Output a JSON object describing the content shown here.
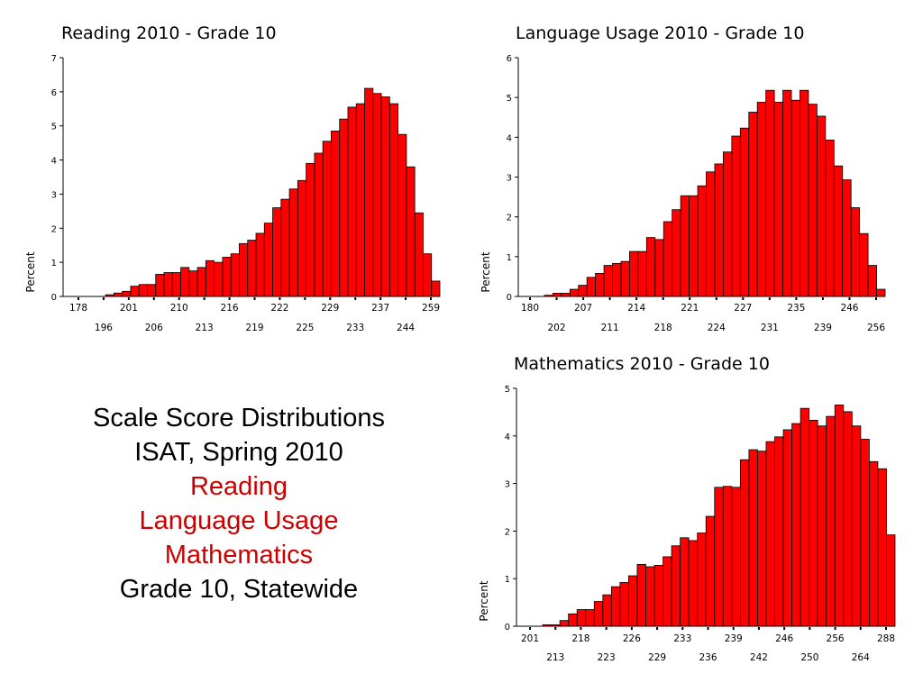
{
  "caption": {
    "line1": "Scale Score Distributions",
    "line2": "ISAT, Spring 2010",
    "line3": "Reading",
    "line4": "Language Usage",
    "line5": "Mathematics",
    "line6": "Grade 10, Statewide"
  },
  "colors": {
    "bar_fill": "#ff0000",
    "bar_stroke": "#000000",
    "highlight_text": "#cc0000"
  },
  "chart_data": [
    {
      "type": "bar",
      "title": "Reading 2010 - Grade 10",
      "ylabel": "Percent",
      "ylim": [
        0,
        7
      ],
      "yticks": [
        0,
        1,
        2,
        3,
        4,
        5,
        6,
        7
      ],
      "xticks_top": [
        "178",
        "201",
        "210",
        "216",
        "222",
        "229",
        "237",
        "259"
      ],
      "xticks_bottom": [
        "196",
        "206",
        "213",
        "219",
        "225",
        "233",
        "244"
      ],
      "values": [
        0,
        0,
        0,
        0,
        0.05,
        0.1,
        0.15,
        0.3,
        0.35,
        0.35,
        0.65,
        0.7,
        0.7,
        0.85,
        0.75,
        0.85,
        1.05,
        1.0,
        1.15,
        1.25,
        1.55,
        1.65,
        1.85,
        2.15,
        2.6,
        2.85,
        3.15,
        3.4,
        3.9,
        4.2,
        4.55,
        4.85,
        5.2,
        5.55,
        5.65,
        6.1,
        5.95,
        5.85,
        5.65,
        4.75,
        3.8,
        2.45,
        1.25,
        0.45
      ]
    },
    {
      "type": "bar",
      "title": "Language Usage 2010 - Grade 10",
      "ylabel": "Percent",
      "ylim": [
        0,
        6
      ],
      "yticks": [
        0,
        1,
        2,
        3,
        4,
        5,
        6
      ],
      "xticks_top": [
        "180",
        "207",
        "214",
        "221",
        "227",
        "235",
        "246"
      ],
      "xticks_bottom": [
        "202",
        "211",
        "218",
        "224",
        "231",
        "239",
        "256"
      ],
      "values": [
        0,
        0,
        0.03,
        0.08,
        0.08,
        0.18,
        0.28,
        0.48,
        0.58,
        0.78,
        0.83,
        0.88,
        1.13,
        1.13,
        1.48,
        1.43,
        1.88,
        2.18,
        2.53,
        2.53,
        2.78,
        3.13,
        3.33,
        3.63,
        4.03,
        4.23,
        4.63,
        4.88,
        5.18,
        4.88,
        5.18,
        4.93,
        5.18,
        4.83,
        4.53,
        3.93,
        3.28,
        2.93,
        2.23,
        1.58,
        0.78,
        0.18
      ]
    },
    {
      "type": "bar",
      "title": "Mathematics 2010 - Grade 10",
      "ylabel": "Percent",
      "ylim": [
        0,
        5
      ],
      "yticks": [
        0,
        1,
        2,
        3,
        4,
        5
      ],
      "xticks_top": [
        "201",
        "218",
        "226",
        "233",
        "239",
        "246",
        "256",
        "288"
      ],
      "xticks_bottom": [
        "213",
        "223",
        "229",
        "236",
        "242",
        "250",
        "264"
      ],
      "values": [
        0,
        0,
        0.03,
        0.03,
        0.12,
        0.26,
        0.35,
        0.35,
        0.52,
        0.66,
        0.83,
        0.92,
        1.06,
        1.3,
        1.25,
        1.28,
        1.46,
        1.69,
        1.86,
        1.8,
        1.96,
        2.31,
        2.92,
        2.94,
        2.92,
        3.5,
        3.71,
        3.68,
        3.88,
        3.98,
        4.13,
        4.26,
        4.58,
        4.33,
        4.21,
        4.41,
        4.65,
        4.51,
        4.21,
        3.93,
        3.46,
        3.31,
        1.92
      ]
    }
  ]
}
